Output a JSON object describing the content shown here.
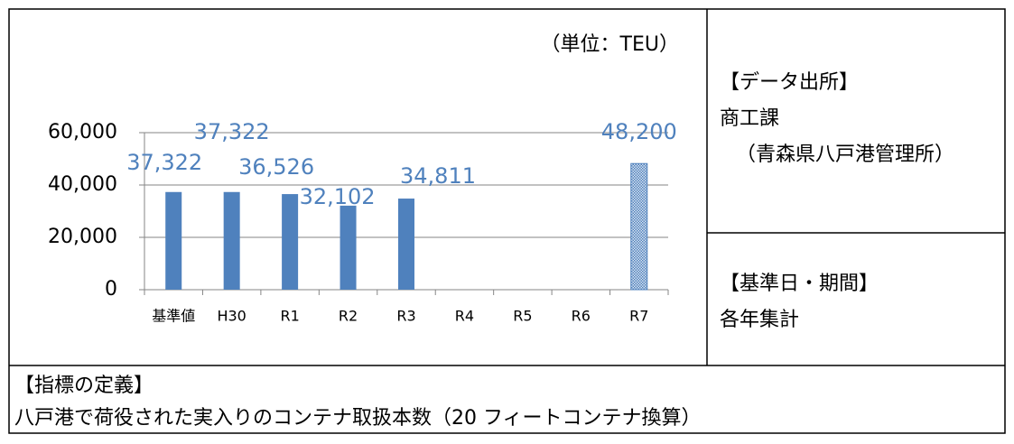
{
  "chart_data": {
    "type": "bar",
    "unit_label": "（単位：TEU）",
    "categories": [
      "基準値",
      "H30",
      "R1",
      "R2",
      "R3",
      "R4",
      "R5",
      "R6",
      "R7"
    ],
    "values": [
      37322,
      37322,
      36526,
      32102,
      34811,
      null,
      null,
      null,
      48200
    ],
    "value_labels": [
      "37,322",
      "37,322",
      "36,526",
      "32,102",
      "34,811",
      null,
      null,
      null,
      "48,200"
    ],
    "color": "#4f81bd",
    "label_color": "#4f81bd",
    "ylim": [
      0,
      60000
    ],
    "yticks": [
      0,
      {
        "value": 20000,
        "label": "20,000"
      },
      {
        "value": 40000,
        "label": "40,000"
      },
      {
        "value": 60000,
        "label": "60,000"
      }
    ],
    "grid": true
  },
  "source": {
    "heading": "【データ出所】",
    "lines": [
      "商工課",
      "（青森県八戸港管理所）"
    ]
  },
  "period": {
    "heading": "【基準日・期間】",
    "text": "各年集計"
  },
  "definition": {
    "heading": "【指標の定義】",
    "text": "八戸港で荷役された実入りのコンテナ取扱本数（20 フィートコンテナ換算）"
  }
}
